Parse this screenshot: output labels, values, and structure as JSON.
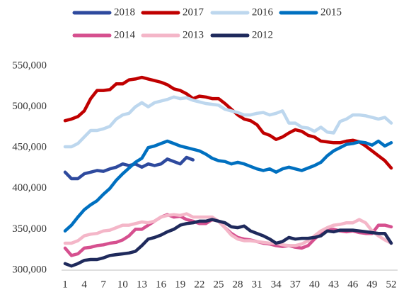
{
  "chart_data": {
    "type": "line",
    "x": [
      1,
      2,
      3,
      4,
      5,
      6,
      7,
      8,
      9,
      10,
      11,
      12,
      13,
      14,
      15,
      16,
      17,
      18,
      19,
      20,
      21,
      22,
      23,
      24,
      25,
      26,
      27,
      28,
      29,
      30,
      31,
      32,
      33,
      34,
      35,
      36,
      37,
      38,
      39,
      40,
      41,
      42,
      43,
      44,
      45,
      46,
      47,
      48,
      49,
      50,
      51,
      52
    ],
    "xlim": [
      1,
      52
    ],
    "xticks": [
      1,
      4,
      7,
      10,
      13,
      16,
      19,
      22,
      25,
      28,
      31,
      34,
      37,
      40,
      43,
      46,
      49,
      52
    ],
    "ylim": [
      300000,
      550000
    ],
    "yticks": [
      {
        "value": 300000,
        "label": "300,000"
      },
      {
        "value": 350000,
        "label": "350,000"
      },
      {
        "value": 400000,
        "label": "400,000"
      },
      {
        "value": 450000,
        "label": "450,000"
      },
      {
        "value": 500000,
        "label": "500,000"
      },
      {
        "value": 550000,
        "label": "550,000"
      }
    ],
    "series": [
      {
        "name": "2018",
        "color": "#2e4a9e",
        "values": [
          420000,
          412000,
          412000,
          418000,
          420000,
          422000,
          421000,
          424000,
          426000,
          430000,
          428000,
          430000,
          426000,
          430000,
          428000,
          430000,
          436000,
          433000,
          430000,
          438000,
          435000,
          null,
          null,
          null,
          null,
          null,
          null,
          null,
          null,
          null,
          null,
          null,
          null,
          null,
          null,
          null,
          null,
          null,
          null,
          null,
          null,
          null,
          null,
          null,
          null,
          null,
          null,
          null,
          null,
          null,
          null,
          null
        ]
      },
      {
        "name": "2017",
        "color": "#c00000",
        "values": [
          483000,
          485000,
          488000,
          495000,
          510000,
          520000,
          520000,
          521000,
          528000,
          528000,
          533000,
          534000,
          536000,
          534000,
          532000,
          530000,
          527000,
          522000,
          520000,
          516000,
          510000,
          513000,
          512000,
          510000,
          510000,
          504000,
          497000,
          490000,
          485000,
          483000,
          478000,
          468000,
          465000,
          460000,
          463000,
          468000,
          472000,
          470000,
          465000,
          463000,
          458000,
          457000,
          456000,
          456000,
          458000,
          459000,
          457000,
          452000,
          446000,
          440000,
          434000,
          425000
        ]
      },
      {
        "name": "2016",
        "color": "#bdd7ee",
        "values": [
          451000,
          451000,
          455000,
          463000,
          471000,
          471000,
          473000,
          476000,
          485000,
          490000,
          492000,
          500000,
          505000,
          500000,
          505000,
          507000,
          509000,
          512000,
          510000,
          511000,
          508000,
          506000,
          504000,
          503000,
          502000,
          497000,
          495000,
          493000,
          490000,
          490000,
          492000,
          493000,
          490000,
          492000,
          495000,
          480000,
          480000,
          475000,
          474000,
          470000,
          475000,
          469000,
          468000,
          482000,
          485000,
          490000,
          490000,
          489000,
          487000,
          485000,
          487000,
          480000
        ]
      },
      {
        "name": "2015",
        "color": "#0070c0",
        "values": [
          348000,
          355000,
          365000,
          374000,
          380000,
          385000,
          393000,
          400000,
          410000,
          418000,
          425000,
          432000,
          437000,
          450000,
          452000,
          455000,
          458000,
          455000,
          452000,
          450000,
          448000,
          446000,
          442000,
          437000,
          434000,
          433000,
          430000,
          432000,
          430000,
          427000,
          424000,
          422000,
          424000,
          420000,
          424000,
          426000,
          424000,
          422000,
          425000,
          428000,
          432000,
          440000,
          446000,
          450000,
          454000,
          455000,
          457000,
          456000,
          453000,
          458000,
          452000,
          456000
        ]
      },
      {
        "name": "2014",
        "color": "#d6508f",
        "values": [
          327000,
          318000,
          320000,
          327000,
          328000,
          330000,
          331000,
          333000,
          334000,
          337000,
          342000,
          350000,
          350000,
          355000,
          360000,
          365000,
          368000,
          365000,
          366000,
          362000,
          360000,
          357000,
          357000,
          362000,
          360000,
          352000,
          345000,
          340000,
          338000,
          337000,
          335000,
          333000,
          332000,
          330000,
          329000,
          330000,
          328000,
          327000,
          330000,
          338000,
          345000,
          349000,
          350000,
          348000,
          347000,
          348000,
          346000,
          345000,
          345000,
          355000,
          355000,
          353000
        ]
      },
      {
        "name": "2013",
        "color": "#f4b6c8",
        "values": [
          333000,
          333000,
          336000,
          342000,
          344000,
          345000,
          348000,
          349000,
          352000,
          355000,
          355000,
          357000,
          359000,
          358000,
          360000,
          365000,
          367000,
          368000,
          367000,
          369000,
          365000,
          365000,
          365000,
          365000,
          360000,
          352000,
          343000,
          338000,
          336000,
          336000,
          335000,
          334000,
          333000,
          333000,
          331000,
          330000,
          330000,
          332000,
          336000,
          342000,
          348000,
          352000,
          355000,
          356000,
          358000,
          358000,
          362000,
          358000,
          348000,
          342000,
          337000,
          333000
        ]
      },
      {
        "name": "2012",
        "color": "#1f2a5c",
        "values": [
          308000,
          305000,
          308000,
          312000,
          313000,
          313000,
          315000,
          318000,
          319000,
          320000,
          321000,
          323000,
          330000,
          338000,
          340000,
          343000,
          347000,
          350000,
          355000,
          357000,
          358000,
          360000,
          360000,
          362000,
          360000,
          358000,
          353000,
          352000,
          354000,
          348000,
          345000,
          342000,
          338000,
          333000,
          335000,
          340000,
          338000,
          339000,
          339000,
          340000,
          342000,
          348000,
          347000,
          349000,
          349000,
          349000,
          348000,
          347000,
          346000,
          345000,
          345000,
          333000
        ]
      }
    ]
  }
}
